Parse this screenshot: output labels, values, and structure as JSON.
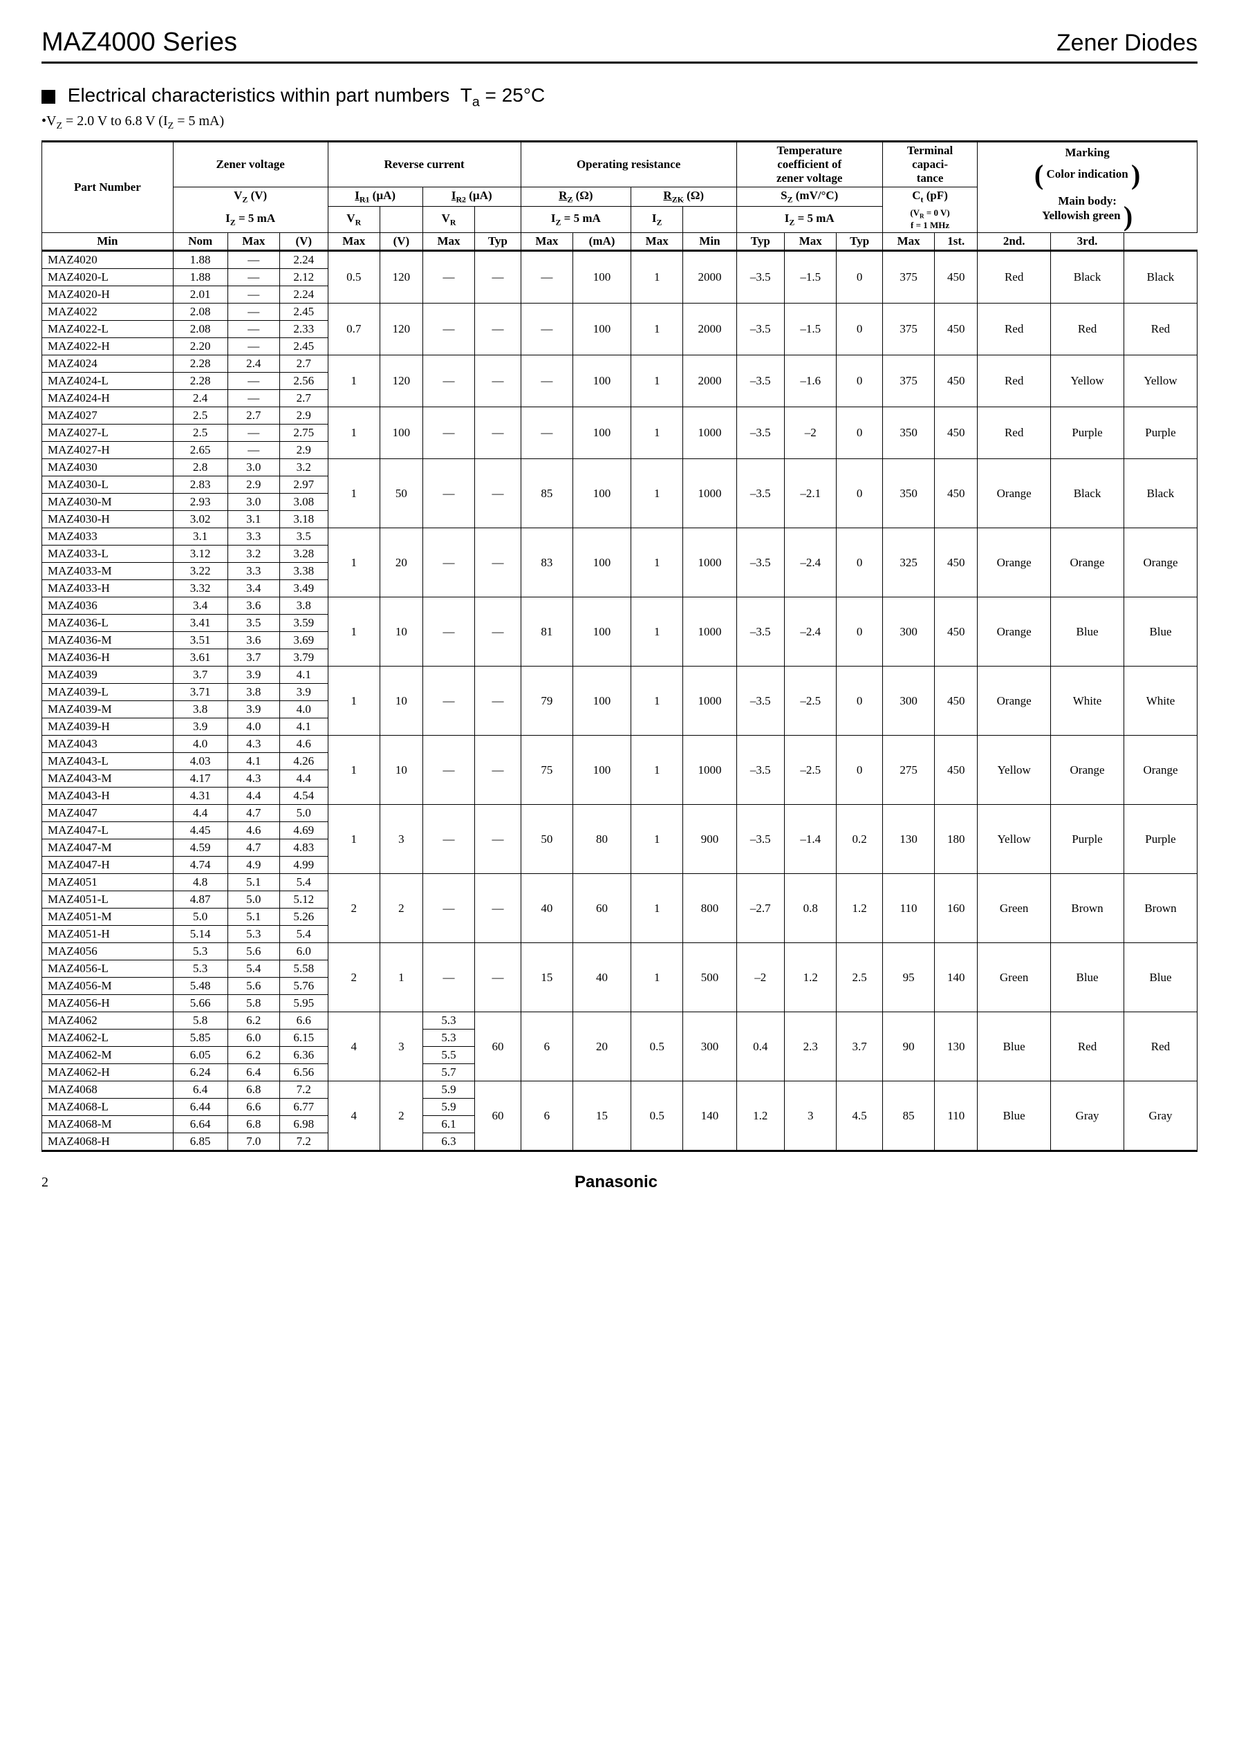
{
  "header": {
    "series": "MAZ4000 Series",
    "category": "Zener Diodes"
  },
  "section": {
    "title_prefix": "Electrical characteristics within part numbers",
    "ta": "T",
    "ta_sub": "a",
    "ta_val": " = 25°C",
    "subnote": "•V",
    "subnote_sub": "Z",
    "subnote_rest": " = 2.0 V to 6.8 V (I",
    "subnote_sub2": "Z",
    "subnote_rest2": " = 5 mA)"
  },
  "table_headers": {
    "part_number": "Part Number",
    "zener_voltage": "Zener voltage",
    "reverse_current": "Reverse current",
    "operating_resistance": "Operating resistance",
    "temp_coef": "Temperature<br>coefficient of<br>zener voltage",
    "term_cap": "Terminal<br>capaci-<br>tance",
    "marking": "Marking",
    "color_indication": "Color indication",
    "main_body": "Main body:",
    "yellowish_green": "Yellowish green",
    "vz": "V<sub>Z</sub> (V)",
    "iz5ma": "I<sub>Z</sub> = 5 mA",
    "ir1": "<span class='sub-under'>I<sub>R1</sub></span> (µA)",
    "ir2": "<span class='sub-under'>I<sub>R2</sub></span> (µA)",
    "vr": "V<sub>R</sub>",
    "rz": "<span class='sub-under'>R<sub>Z</sub></span> (Ω)",
    "rzk": "<span class='sub-under'>R<sub>ZK</sub></span> (Ω)",
    "iz": "I<sub>Z</sub>",
    "sz": "S<sub>Z</sub> (mV/°C)",
    "ct": "C<sub>t</sub> (pF)",
    "vr0": "(V<sub>R</sub> = 0 V)<br>f = 1 MHz",
    "min": "Min",
    "nom": "Nom",
    "max": "Max",
    "v": "(V)",
    "typ": "Typ",
    "ma": "(mA)",
    "first": "1st.",
    "second": "2nd.",
    "third": "3rd."
  },
  "groups": [
    {
      "rows": [
        {
          "pn": "MAZ4020",
          "min": "1.88",
          "nom": "—",
          "max": "2.24"
        },
        {
          "pn": "MAZ4020-L",
          "min": "1.88",
          "nom": "—",
          "max": "2.12"
        },
        {
          "pn": "MAZ4020-H",
          "min": "2.01",
          "nom": "—",
          "max": "2.24"
        }
      ],
      "vr1": "0.5",
      "ir1max": "120",
      "vr2": "—",
      "ir2max": "—",
      "rztyp": "—",
      "rzmax": "100",
      "izma": "1",
      "rzkmax": "2000",
      "szmin": "–3.5",
      "sztyp": "–1.5",
      "szmax": "0",
      "cttyp": "375",
      "ctmax": "450",
      "c1": "Red",
      "c2": "Black",
      "c3": "Black"
    },
    {
      "rows": [
        {
          "pn": "MAZ4022",
          "min": "2.08",
          "nom": "—",
          "max": "2.45"
        },
        {
          "pn": "MAZ4022-L",
          "min": "2.08",
          "nom": "—",
          "max": "2.33"
        },
        {
          "pn": "MAZ4022-H",
          "min": "2.20",
          "nom": "—",
          "max": "2.45"
        }
      ],
      "vr1": "0.7",
      "ir1max": "120",
      "vr2": "—",
      "ir2max": "—",
      "rztyp": "—",
      "rzmax": "100",
      "izma": "1",
      "rzkmax": "2000",
      "szmin": "–3.5",
      "sztyp": "–1.5",
      "szmax": "0",
      "cttyp": "375",
      "ctmax": "450",
      "c1": "Red",
      "c2": "Red",
      "c3": "Red"
    },
    {
      "rows": [
        {
          "pn": "MAZ4024",
          "min": "2.28",
          "nom": "2.4",
          "max": "2.7"
        },
        {
          "pn": "MAZ4024-L",
          "min": "2.28",
          "nom": "—",
          "max": "2.56"
        },
        {
          "pn": "MAZ4024-H",
          "min": "2.4",
          "nom": "—",
          "max": "2.7"
        }
      ],
      "vr1": "1",
      "ir1max": "120",
      "vr2": "—",
      "ir2max": "—",
      "rztyp": "—",
      "rzmax": "100",
      "izma": "1",
      "rzkmax": "2000",
      "szmin": "–3.5",
      "sztyp": "–1.6",
      "szmax": "0",
      "cttyp": "375",
      "ctmax": "450",
      "c1": "Red",
      "c2": "Yellow",
      "c3": "Yellow"
    },
    {
      "rows": [
        {
          "pn": "MAZ4027",
          "min": "2.5",
          "nom": "2.7",
          "max": "2.9"
        },
        {
          "pn": "MAZ4027-L",
          "min": "2.5",
          "nom": "—",
          "max": "2.75"
        },
        {
          "pn": "MAZ4027-H",
          "min": "2.65",
          "nom": "—",
          "max": "2.9"
        }
      ],
      "vr1": "1",
      "ir1max": "100",
      "vr2": "—",
      "ir2max": "—",
      "rztyp": "—",
      "rzmax": "100",
      "izma": "1",
      "rzkmax": "1000",
      "szmin": "–3.5",
      "sztyp": "–2",
      "szmax": "0",
      "cttyp": "350",
      "ctmax": "450",
      "c1": "Red",
      "c2": "Purple",
      "c3": "Purple"
    },
    {
      "rows": [
        {
          "pn": "MAZ4030",
          "min": "2.8",
          "nom": "3.0",
          "max": "3.2"
        },
        {
          "pn": "MAZ4030-L",
          "min": "2.83",
          "nom": "2.9",
          "max": "2.97"
        },
        {
          "pn": "MAZ4030-M",
          "min": "2.93",
          "nom": "3.0",
          "max": "3.08"
        },
        {
          "pn": "MAZ4030-H",
          "min": "3.02",
          "nom": "3.1",
          "max": "3.18"
        }
      ],
      "vr1": "1",
      "ir1max": "50",
      "vr2": "—",
      "ir2max": "—",
      "rztyp": "85",
      "rzmax": "100",
      "izma": "1",
      "rzkmax": "1000",
      "szmin": "–3.5",
      "sztyp": "–2.1",
      "szmax": "0",
      "cttyp": "350",
      "ctmax": "450",
      "c1": "Orange",
      "c2": "Black",
      "c3": "Black"
    },
    {
      "rows": [
        {
          "pn": "MAZ4033",
          "min": "3.1",
          "nom": "3.3",
          "max": "3.5"
        },
        {
          "pn": "MAZ4033-L",
          "min": "3.12",
          "nom": "3.2",
          "max": "3.28"
        },
        {
          "pn": "MAZ4033-M",
          "min": "3.22",
          "nom": "3.3",
          "max": "3.38"
        },
        {
          "pn": "MAZ4033-H",
          "min": "3.32",
          "nom": "3.4",
          "max": "3.49"
        }
      ],
      "vr1": "1",
      "ir1max": "20",
      "vr2": "—",
      "ir2max": "—",
      "rztyp": "83",
      "rzmax": "100",
      "izma": "1",
      "rzkmax": "1000",
      "szmin": "–3.5",
      "sztyp": "–2.4",
      "szmax": "0",
      "cttyp": "325",
      "ctmax": "450",
      "c1": "Orange",
      "c2": "Orange",
      "c3": "Orange"
    },
    {
      "rows": [
        {
          "pn": "MAZ4036",
          "min": "3.4",
          "nom": "3.6",
          "max": "3.8"
        },
        {
          "pn": "MAZ4036-L",
          "min": "3.41",
          "nom": "3.5",
          "max": "3.59"
        },
        {
          "pn": "MAZ4036-M",
          "min": "3.51",
          "nom": "3.6",
          "max": "3.69"
        },
        {
          "pn": "MAZ4036-H",
          "min": "3.61",
          "nom": "3.7",
          "max": "3.79"
        }
      ],
      "vr1": "1",
      "ir1max": "10",
      "vr2": "—",
      "ir2max": "—",
      "rztyp": "81",
      "rzmax": "100",
      "izma": "1",
      "rzkmax": "1000",
      "szmin": "–3.5",
      "sztyp": "–2.4",
      "szmax": "0",
      "cttyp": "300",
      "ctmax": "450",
      "c1": "Orange",
      "c2": "Blue",
      "c3": "Blue"
    },
    {
      "rows": [
        {
          "pn": "MAZ4039",
          "min": "3.7",
          "nom": "3.9",
          "max": "4.1"
        },
        {
          "pn": "MAZ4039-L",
          "min": "3.71",
          "nom": "3.8",
          "max": "3.9"
        },
        {
          "pn": "MAZ4039-M",
          "min": "3.8",
          "nom": "3.9",
          "max": "4.0"
        },
        {
          "pn": "MAZ4039-H",
          "min": "3.9",
          "nom": "4.0",
          "max": "4.1"
        }
      ],
      "vr1": "1",
      "ir1max": "10",
      "vr2": "—",
      "ir2max": "—",
      "rztyp": "79",
      "rzmax": "100",
      "izma": "1",
      "rzkmax": "1000",
      "szmin": "–3.5",
      "sztyp": "–2.5",
      "szmax": "0",
      "cttyp": "300",
      "ctmax": "450",
      "c1": "Orange",
      "c2": "White",
      "c3": "White"
    },
    {
      "rows": [
        {
          "pn": "MAZ4043",
          "min": "4.0",
          "nom": "4.3",
          "max": "4.6"
        },
        {
          "pn": "MAZ4043-L",
          "min": "4.03",
          "nom": "4.1",
          "max": "4.26"
        },
        {
          "pn": "MAZ4043-M",
          "min": "4.17",
          "nom": "4.3",
          "max": "4.4"
        },
        {
          "pn": "MAZ4043-H",
          "min": "4.31",
          "nom": "4.4",
          "max": "4.54"
        }
      ],
      "vr1": "1",
      "ir1max": "10",
      "vr2": "—",
      "ir2max": "—",
      "rztyp": "75",
      "rzmax": "100",
      "izma": "1",
      "rzkmax": "1000",
      "szmin": "–3.5",
      "sztyp": "–2.5",
      "szmax": "0",
      "cttyp": "275",
      "ctmax": "450",
      "c1": "Yellow",
      "c2": "Orange",
      "c3": "Orange"
    },
    {
      "rows": [
        {
          "pn": "MAZ4047",
          "min": "4.4",
          "nom": "4.7",
          "max": "5.0"
        },
        {
          "pn": "MAZ4047-L",
          "min": "4.45",
          "nom": "4.6",
          "max": "4.69"
        },
        {
          "pn": "MAZ4047-M",
          "min": "4.59",
          "nom": "4.7",
          "max": "4.83"
        },
        {
          "pn": "MAZ4047-H",
          "min": "4.74",
          "nom": "4.9",
          "max": "4.99"
        }
      ],
      "vr1": "1",
      "ir1max": "3",
      "vr2": "—",
      "ir2max": "—",
      "rztyp": "50",
      "rzmax": "80",
      "izma": "1",
      "rzkmax": "900",
      "szmin": "–3.5",
      "sztyp": "–1.4",
      "szmax": "0.2",
      "cttyp": "130",
      "ctmax": "180",
      "c1": "Yellow",
      "c2": "Purple",
      "c3": "Purple"
    },
    {
      "rows": [
        {
          "pn": "MAZ4051",
          "min": "4.8",
          "nom": "5.1",
          "max": "5.4"
        },
        {
          "pn": "MAZ4051-L",
          "min": "4.87",
          "nom": "5.0",
          "max": "5.12"
        },
        {
          "pn": "MAZ4051-M",
          "min": "5.0",
          "nom": "5.1",
          "max": "5.26"
        },
        {
          "pn": "MAZ4051-H",
          "min": "5.14",
          "nom": "5.3",
          "max": "5.4"
        }
      ],
      "vr1": "2",
      "ir1max": "2",
      "vr2": "—",
      "ir2max": "—",
      "rztyp": "40",
      "rzmax": "60",
      "izma": "1",
      "rzkmax": "800",
      "szmin": "–2.7",
      "sztyp": "0.8",
      "szmax": "1.2",
      "cttyp": "110",
      "ctmax": "160",
      "c1": "Green",
      "c2": "Brown",
      "c3": "Brown"
    },
    {
      "rows": [
        {
          "pn": "MAZ4056",
          "min": "5.3",
          "nom": "5.6",
          "max": "6.0"
        },
        {
          "pn": "MAZ4056-L",
          "min": "5.3",
          "nom": "5.4",
          "max": "5.58"
        },
        {
          "pn": "MAZ4056-M",
          "min": "5.48",
          "nom": "5.6",
          "max": "5.76"
        },
        {
          "pn": "MAZ4056-H",
          "min": "5.66",
          "nom": "5.8",
          "max": "5.95"
        }
      ],
      "vr1": "2",
      "ir1max": "1",
      "vr2": "—",
      "ir2max": "—",
      "rztyp": "15",
      "rzmax": "40",
      "izma": "1",
      "rzkmax": "500",
      "szmin": "–2",
      "sztyp": "1.2",
      "szmax": "2.5",
      "cttyp": "95",
      "ctmax": "140",
      "c1": "Green",
      "c2": "Blue",
      "c3": "Blue"
    },
    {
      "rows": [
        {
          "pn": "MAZ4062",
          "min": "5.8",
          "nom": "6.2",
          "max": "6.6",
          "vr2": "5.3"
        },
        {
          "pn": "MAZ4062-L",
          "min": "5.85",
          "nom": "6.0",
          "max": "6.15",
          "vr2": "5.3"
        },
        {
          "pn": "MAZ4062-M",
          "min": "6.05",
          "nom": "6.2",
          "max": "6.36",
          "vr2": "5.5"
        },
        {
          "pn": "MAZ4062-H",
          "min": "6.24",
          "nom": "6.4",
          "max": "6.56",
          "vr2": "5.7"
        }
      ],
      "vr1": "4",
      "ir1max": "3",
      "ir2max": "60",
      "rztyp": "6",
      "rzmax": "20",
      "izma": "0.5",
      "rzkmax": "300",
      "szmin": "0.4",
      "sztyp": "2.3",
      "szmax": "3.7",
      "cttyp": "90",
      "ctmax": "130",
      "c1": "Blue",
      "c2": "Red",
      "c3": "Red",
      "per_row_vr2": true
    },
    {
      "rows": [
        {
          "pn": "MAZ4068",
          "min": "6.4",
          "nom": "6.8",
          "max": "7.2",
          "vr2": "5.9"
        },
        {
          "pn": "MAZ4068-L",
          "min": "6.44",
          "nom": "6.6",
          "max": "6.77",
          "vr2": "5.9"
        },
        {
          "pn": "MAZ4068-M",
          "min": "6.64",
          "nom": "6.8",
          "max": "6.98",
          "vr2": "6.1"
        },
        {
          "pn": "MAZ4068-H",
          "min": "6.85",
          "nom": "7.0",
          "max": "7.2",
          "vr2": "6.3"
        }
      ],
      "vr1": "4",
      "ir1max": "2",
      "ir2max": "60",
      "rztyp": "6",
      "rzmax": "15",
      "izma": "0.5",
      "rzkmax": "140",
      "szmin": "1.2",
      "sztyp": "3",
      "szmax": "4.5",
      "cttyp": "85",
      "ctmax": "110",
      "c1": "Blue",
      "c2": "Gray",
      "c3": "Gray",
      "per_row_vr2": true
    }
  ],
  "footer": {
    "page": "2",
    "brand": "Panasonic"
  }
}
